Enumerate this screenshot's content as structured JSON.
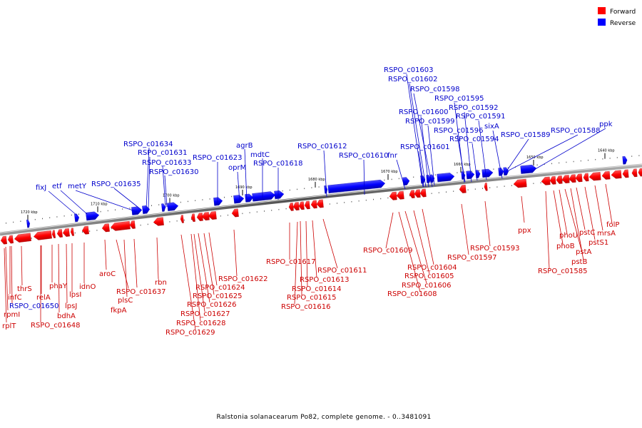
{
  "legend": {
    "forward_label": "Forward",
    "reverse_label": "Reverse",
    "forward_color": "#ff0000",
    "reverse_color": "#0000ff"
  },
  "caption": "Ralstonia solanacearum Po82, complete genome. - 0..3481091",
  "ticks": [
    "1720 kbp",
    "1710 kbp",
    "1700 kbp",
    "1690 kbp",
    "1680 kbp",
    "1670 kbp",
    "1660 kbp",
    "1650 kbp",
    "1640 kbp"
  ],
  "reverse_genes": [
    "fixJ",
    "etf",
    "metY",
    "RSPO_c01635",
    "RSPO_c01634",
    "RSPO_c01631",
    "RSPO_c01633",
    "RSPO_c01630",
    "RSPO_c01623",
    "oprM",
    "agrB",
    "mdtC",
    "RSPO_c01618",
    "RSPO_c01612",
    "RSPO_c01610",
    "fnr",
    "RSPO_c01603",
    "RSPO_c01602",
    "RSPO_c01598",
    "RSPO_c01600",
    "RSPO_c01599",
    "RSPO_c01601",
    "RSPO_c01595",
    "RSPO_c01592",
    "RSPO_c01591",
    "RSPO_c01596",
    "RSPO_c01594",
    "sixA",
    "RSPO_c01589",
    "RSPO_c01588",
    "ppk"
  ],
  "forward_genes": [
    "rplT",
    "rpmI",
    "infC",
    "RSPO_c01650",
    "thrS",
    "relA",
    "RSPO_c01648",
    "phaY",
    "bdhA",
    "lpsJ",
    "lpsI",
    "idnO",
    "aroC",
    "RSPO_c01637",
    "plsC",
    "fkpA",
    "rbn",
    "RSPO_c01629",
    "RSPO_c01628",
    "RSPO_c01627",
    "RSPO_c01626",
    "RSPO_c01625",
    "RSPO_c01624",
    "RSPO_c01622",
    "RSPO_c01617",
    "RSPO_c01616",
    "RSPO_c01615",
    "RSPO_c01614",
    "RSPO_c01613",
    "RSPO_c01611",
    "RSPO_c01609",
    "RSPO_c01608",
    "RSPO_c01606",
    "RSPO_c01605",
    "RSPO_c01604",
    "RSPO_c01597",
    "RSPO_c01593",
    "ppx",
    "RSPO_c01585",
    "phoB",
    "phoU",
    "pstA",
    "pstB",
    "pstC",
    "pstS1",
    "mrsA",
    "folP"
  ]
}
